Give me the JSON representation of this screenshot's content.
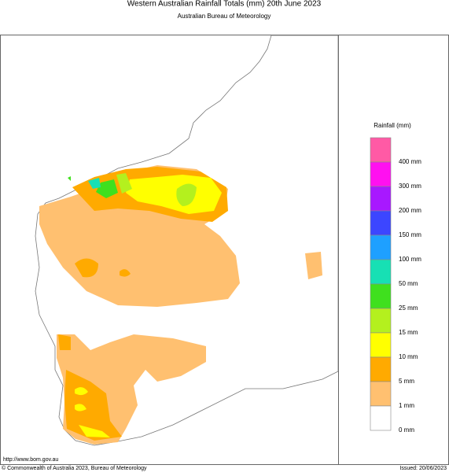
{
  "header": {
    "title": "Western Australian Rainfall Totals (mm) 20th June 2023",
    "subtitle": "Australian Bureau of Meteorology"
  },
  "legend": {
    "title": "Rainfall (mm)",
    "items": [
      {
        "label": "400 mm",
        "color": "#ff5aa5"
      },
      {
        "label": "300 mm",
        "color": "#ff10f0"
      },
      {
        "label": "200 mm",
        "color": "#a818ff"
      },
      {
        "label": "150 mm",
        "color": "#3c46ff"
      },
      {
        "label": "100 mm",
        "color": "#1ea0ff"
      },
      {
        "label": "50 mm",
        "color": "#17e0b4"
      },
      {
        "label": "25 mm",
        "color": "#3fe01e"
      },
      {
        "label": "15 mm",
        "color": "#b4f01e"
      },
      {
        "label": "10 mm",
        "color": "#ffff00"
      },
      {
        "label": "5 mm",
        "color": "#ffaa00"
      },
      {
        "label": "1 mm",
        "color": "#ffc070"
      },
      {
        "label": "0 mm",
        "color": "#ffffff"
      }
    ]
  },
  "footer": {
    "url": "http://www.bom.gov.au",
    "copyright": "© Commonwealth of Australia 2023, Bureau of Meteorology",
    "issued": "Issued: 20/06/2023"
  }
}
